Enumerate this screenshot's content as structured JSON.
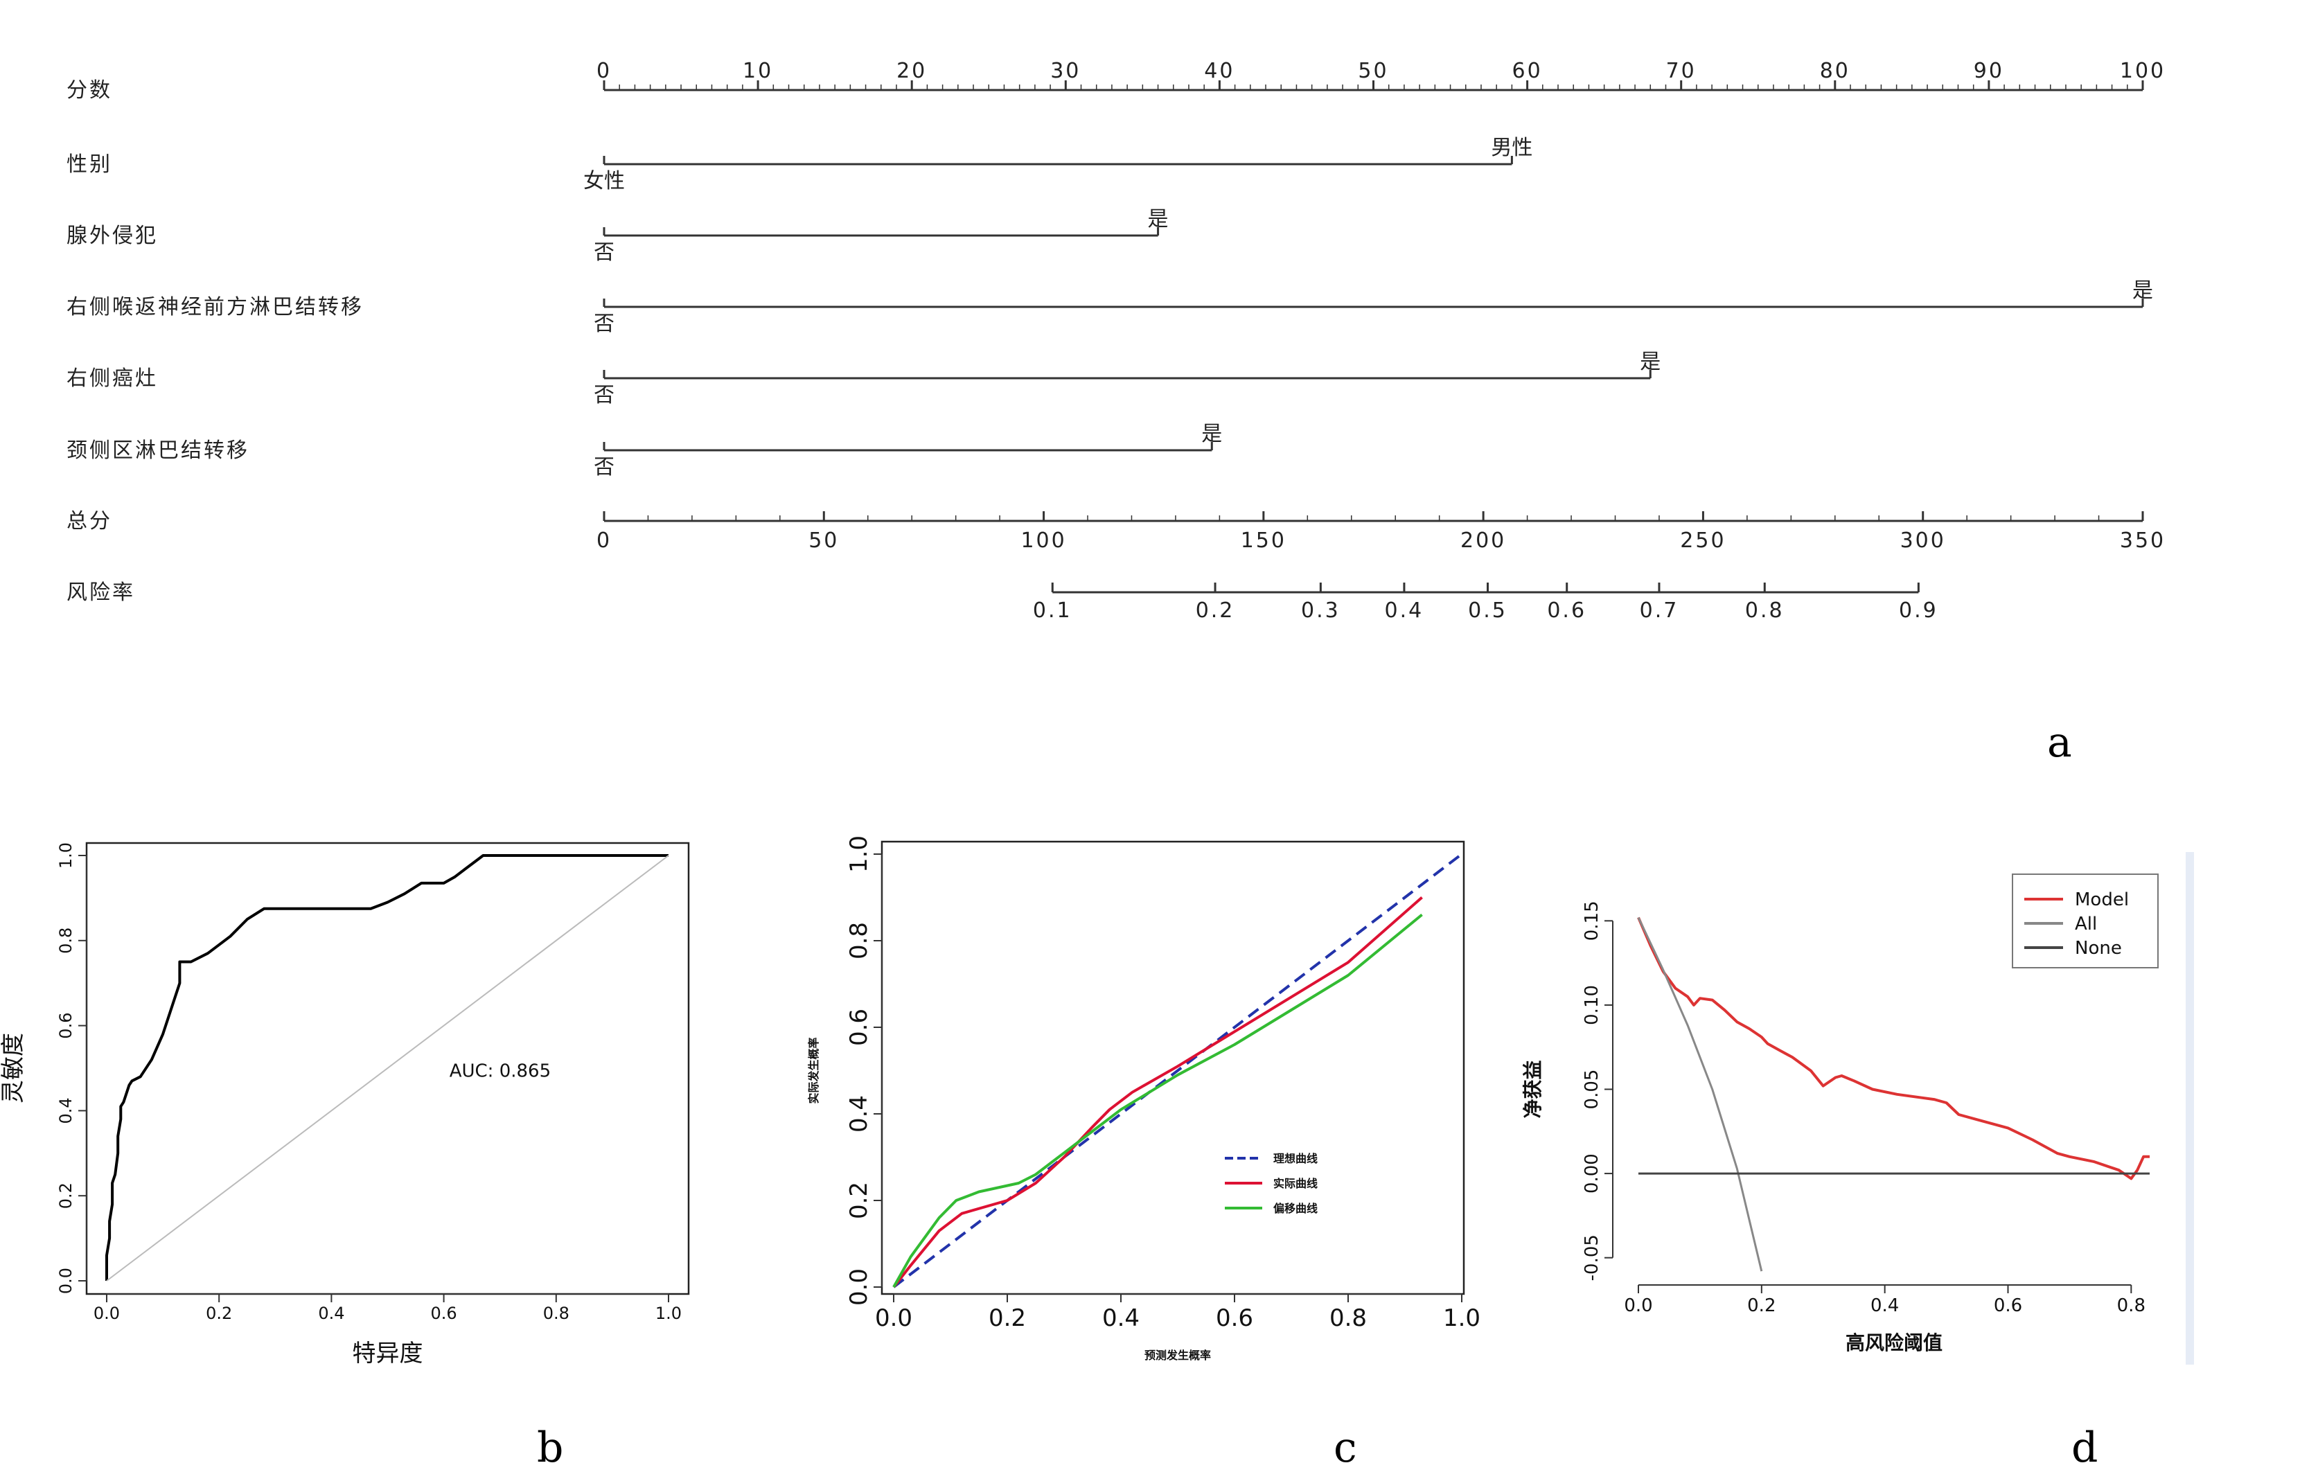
{
  "chart_data": [
    {
      "panel": "a",
      "type": "nomogram",
      "rows": [
        {
          "label": "分数",
          "kind": "scale",
          "min": 0,
          "max": 100,
          "ticks": [
            0,
            10,
            20,
            30,
            40,
            50,
            60,
            70,
            80,
            90,
            100
          ],
          "minor_step": 1
        },
        {
          "label": "性别",
          "kind": "variable",
          "levels": [
            {
              "label": "女性",
              "points": 0
            },
            {
              "label": "男性",
              "points": 59
            }
          ]
        },
        {
          "label": "腺外侵犯",
          "kind": "variable",
          "levels": [
            {
              "label": "否",
              "points": 0
            },
            {
              "label": "是",
              "points": 36
            }
          ]
        },
        {
          "label": "右侧喉返神经前方淋巴结转移",
          "kind": "variable",
          "levels": [
            {
              "label": "否",
              "points": 0
            },
            {
              "label": "是",
              "points": 100
            }
          ]
        },
        {
          "label": "右侧癌灶",
          "kind": "variable",
          "levels": [
            {
              "label": "否",
              "points": 0
            },
            {
              "label": "是",
              "points": 68
            }
          ]
        },
        {
          "label": "颈侧区淋巴结转移",
          "kind": "variable",
          "levels": [
            {
              "label": "否",
              "points": 0
            },
            {
              "label": "是",
              "points": 39.5
            }
          ]
        },
        {
          "label": "总分",
          "kind": "scale",
          "min": 0,
          "max": 350,
          "ticks": [
            0,
            50,
            100,
            150,
            200,
            250,
            300,
            350
          ],
          "minor_step": 10
        },
        {
          "label": "风险率",
          "kind": "risk",
          "ticks": [
            {
              "label": "0.1",
              "total": 102
            },
            {
              "label": "0.2",
              "total": 139
            },
            {
              "label": "0.3",
              "total": 163
            },
            {
              "label": "0.4",
              "total": 182
            },
            {
              "label": "0.5",
              "total": 201
            },
            {
              "label": "0.6",
              "total": 219
            },
            {
              "label": "0.7",
              "total": 240
            },
            {
              "label": "0.8",
              "total": 264
            },
            {
              "label": "0.9",
              "total": 299
            }
          ]
        }
      ],
      "panel_label": "a"
    },
    {
      "panel": "b",
      "type": "line",
      "xlabel": "特异度",
      "ylabel": "灵敏度",
      "xlim": [
        0,
        1
      ],
      "ylim": [
        0,
        1
      ],
      "xticks": [
        "0.0",
        "0.2",
        "0.4",
        "0.6",
        "0.8",
        "1.0"
      ],
      "yticks": [
        "0.0",
        "0.2",
        "0.4",
        "0.6",
        "0.8",
        "1.0"
      ],
      "annotation": "AUC: 0.865",
      "series": [
        {
          "color": "#000000",
          "x": [
            0,
            0,
            0.005,
            0.005,
            0.01,
            0.01,
            0.015,
            0.02,
            0.02,
            0.025,
            0.025,
            0.03,
            0.035,
            0.04,
            0.045,
            0.06,
            0.08,
            0.1,
            0.12,
            0.13,
            0.13,
            0.15,
            0.18,
            0.22,
            0.25,
            0.28,
            0.3,
            0.35,
            0.4,
            0.47,
            0.5,
            0.53,
            0.56,
            0.58,
            0.6,
            0.62,
            0.64,
            0.66,
            0.67,
            0.8,
            1.0
          ],
          "y": [
            0,
            0.06,
            0.1,
            0.14,
            0.18,
            0.23,
            0.25,
            0.3,
            0.34,
            0.38,
            0.41,
            0.42,
            0.44,
            0.46,
            0.47,
            0.48,
            0.52,
            0.58,
            0.66,
            0.7,
            0.75,
            0.75,
            0.77,
            0.81,
            0.85,
            0.875,
            0.875,
            0.875,
            0.875,
            0.875,
            0.89,
            0.91,
            0.935,
            0.935,
            0.935,
            0.95,
            0.97,
            0.99,
            1.0,
            1.0,
            1.0
          ]
        },
        {
          "color": "#bbbbbb",
          "x": [
            0,
            1
          ],
          "y": [
            0,
            1
          ]
        }
      ],
      "panel_label": "b"
    },
    {
      "panel": "c",
      "type": "line",
      "xlabel": "预测发生概率",
      "ylabel": "实际发生概率",
      "xlim": [
        0,
        1
      ],
      "ylim": [
        0,
        1
      ],
      "xticks": [
        "0.0",
        "0.2",
        "0.4",
        "0.6",
        "0.8",
        "1.0"
      ],
      "yticks": [
        "0.0",
        "0.2",
        "0.4",
        "0.6",
        "0.8",
        "1.0"
      ],
      "series": [
        {
          "name": "理想曲线",
          "color": "#2233aa",
          "dash": true,
          "x": [
            0,
            1
          ],
          "y": [
            0,
            1
          ]
        },
        {
          "name": "实际曲线",
          "color": "#dd1133",
          "x": [
            0,
            0.03,
            0.08,
            0.12,
            0.2,
            0.25,
            0.3,
            0.35,
            0.38,
            0.42,
            0.5,
            0.6,
            0.7,
            0.8,
            0.93
          ],
          "y": [
            0,
            0.05,
            0.13,
            0.17,
            0.2,
            0.24,
            0.3,
            0.37,
            0.41,
            0.45,
            0.51,
            0.59,
            0.67,
            0.75,
            0.9
          ]
        },
        {
          "name": "偏移曲线",
          "color": "#33bb33",
          "x": [
            0,
            0.03,
            0.08,
            0.11,
            0.15,
            0.22,
            0.25,
            0.3,
            0.35,
            0.4,
            0.5,
            0.6,
            0.7,
            0.8,
            0.93
          ],
          "y": [
            0,
            0.07,
            0.16,
            0.2,
            0.22,
            0.24,
            0.26,
            0.31,
            0.36,
            0.41,
            0.49,
            0.56,
            0.64,
            0.72,
            0.86
          ]
        }
      ],
      "panel_label": "c"
    },
    {
      "panel": "d",
      "type": "line",
      "xlabel": "高风险阈值",
      "ylabel": "净获益",
      "xlim": [
        0,
        0.83
      ],
      "ylim": [
        -0.06,
        0.16
      ],
      "xticks": [
        "0.0",
        "0.2",
        "0.4",
        "0.6",
        "0.8"
      ],
      "yticks": [
        "-0.05",
        "0.00",
        "0.05",
        "0.10",
        "0.15"
      ],
      "series": [
        {
          "name": "Model",
          "color": "#dd3333",
          "x": [
            0,
            0.02,
            0.04,
            0.06,
            0.08,
            0.09,
            0.1,
            0.12,
            0.14,
            0.16,
            0.18,
            0.2,
            0.21,
            0.23,
            0.25,
            0.28,
            0.3,
            0.32,
            0.33,
            0.35,
            0.38,
            0.42,
            0.46,
            0.48,
            0.5,
            0.52,
            0.55,
            0.6,
            0.64,
            0.68,
            0.7,
            0.74,
            0.78,
            0.8,
            0.81,
            0.82,
            0.83
          ],
          "y": [
            0.152,
            0.135,
            0.12,
            0.11,
            0.105,
            0.1,
            0.104,
            0.103,
            0.097,
            0.09,
            0.086,
            0.081,
            0.077,
            0.073,
            0.069,
            0.061,
            0.052,
            0.057,
            0.058,
            0.055,
            0.05,
            0.047,
            0.045,
            0.044,
            0.042,
            0.035,
            0.032,
            0.027,
            0.02,
            0.012,
            0.01,
            0.007,
            0.002,
            -0.003,
            0.002,
            0.01,
            0.01
          ]
        },
        {
          "name": "All",
          "color": "#888888",
          "x": [
            0,
            0.04,
            0.08,
            0.12,
            0.16,
            0.2
          ],
          "y": [
            0.152,
            0.121,
            0.088,
            0.05,
            0.003,
            -0.058
          ]
        },
        {
          "name": "None",
          "color": "#444444",
          "x": [
            0,
            0.83
          ],
          "y": [
            0,
            0
          ]
        }
      ],
      "panel_label": "d"
    }
  ]
}
